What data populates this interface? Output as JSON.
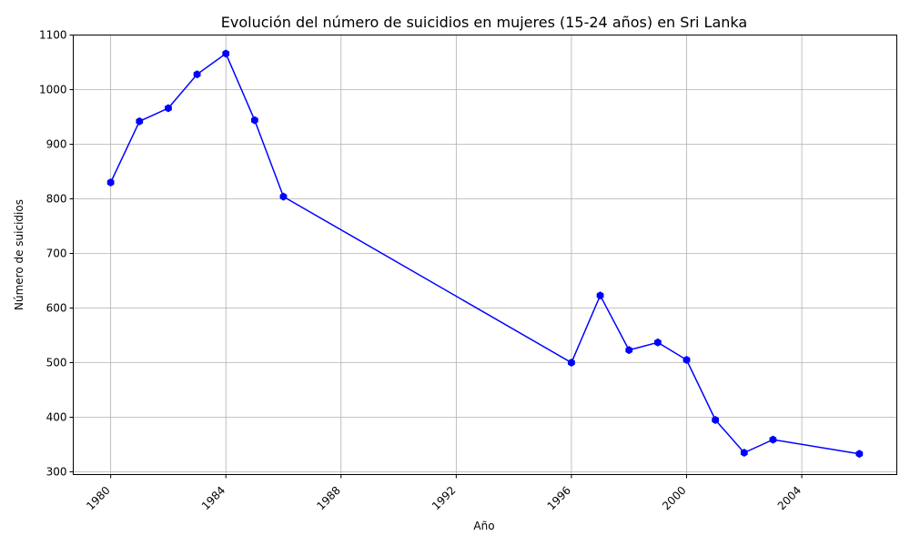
{
  "chart_data": {
    "type": "line",
    "title": "Evolución del número de suicidios en mujeres (15-24 años) en Sri Lanka",
    "xlabel": "Año",
    "ylabel": "Número de suicidios",
    "xlim": [
      1978.7,
      2007.3
    ],
    "ylim": [
      295,
      1100
    ],
    "xticks": [
      1980,
      1984,
      1988,
      1992,
      1996,
      2000,
      2004
    ],
    "yticks": [
      300,
      400,
      500,
      600,
      700,
      800,
      900,
      1000,
      1100
    ],
    "grid": true,
    "series": [
      {
        "color": "#0000ff",
        "marker": "hexagon",
        "x": [
          1980,
          1981,
          1982,
          1983,
          1984,
          1985,
          1986,
          1996,
          1997,
          1998,
          1999,
          2000,
          2001,
          2002,
          2003,
          2006
        ],
        "y": [
          830,
          942,
          966,
          1028,
          1066,
          944,
          804,
          500,
          623,
          523,
          537,
          505,
          395,
          335,
          359,
          333
        ]
      }
    ]
  }
}
